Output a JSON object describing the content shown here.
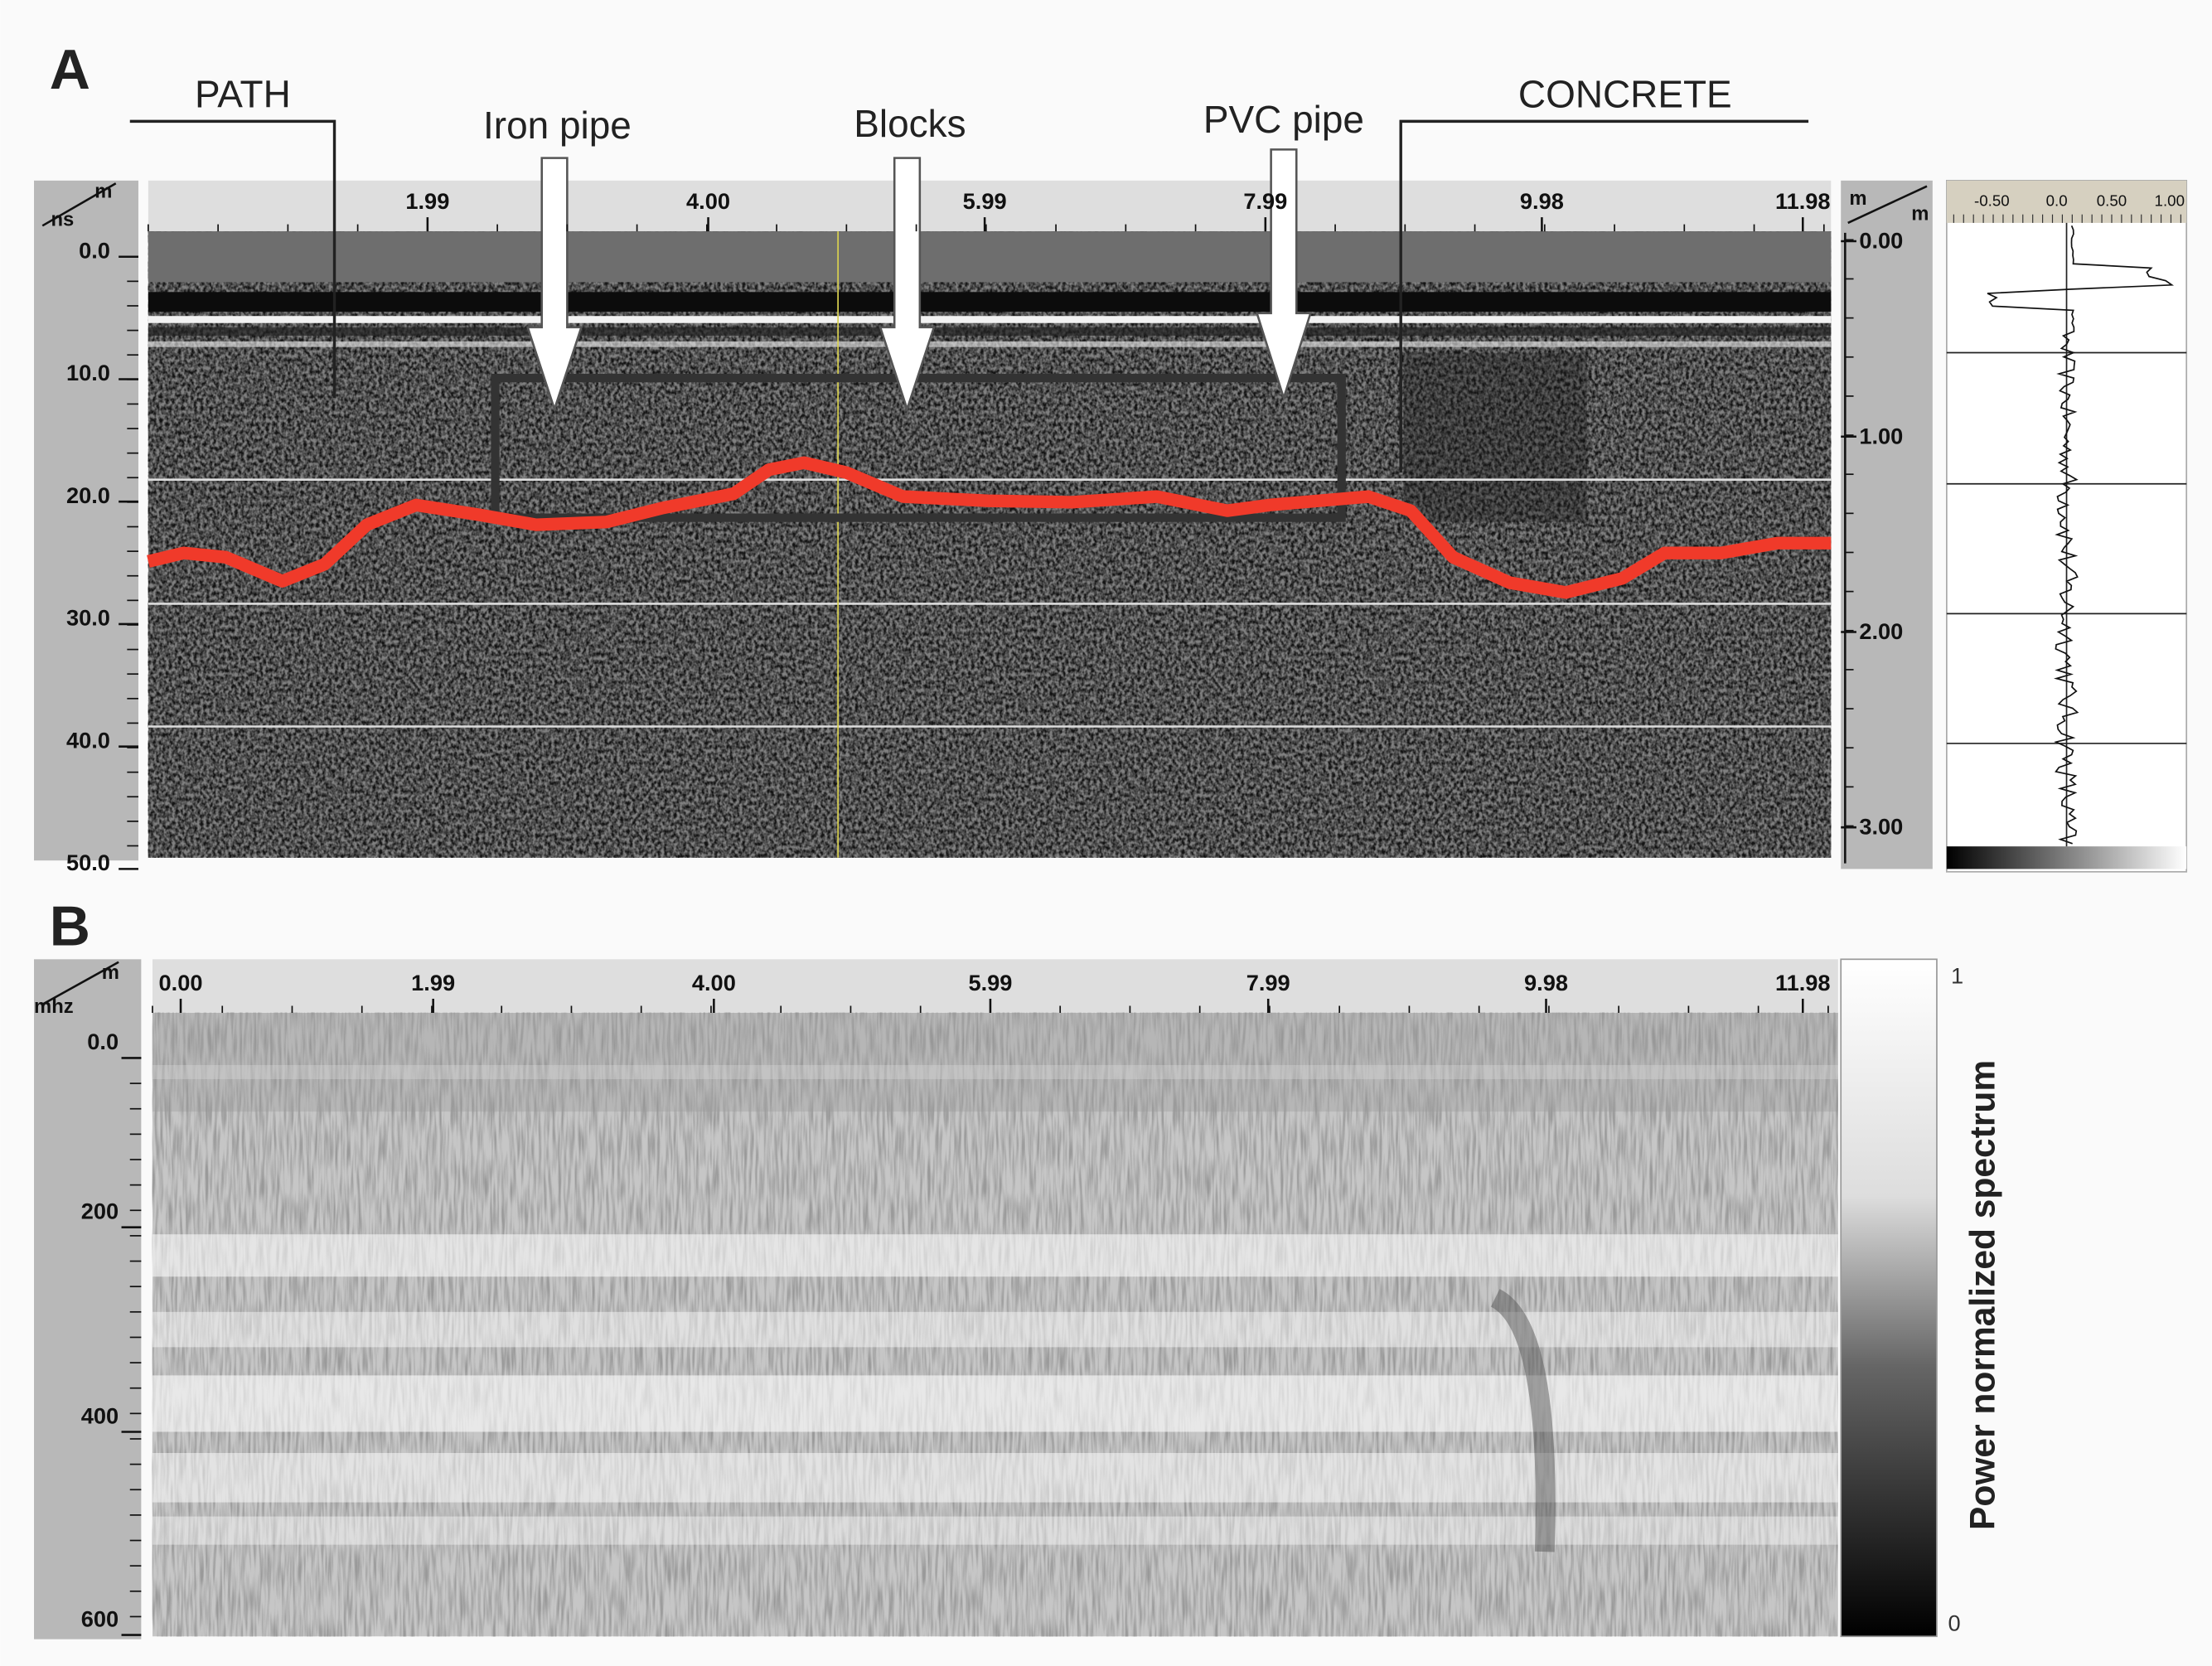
{
  "panel_a": {
    "label": "A",
    "annotations": [
      "PATH",
      "Iron pipe",
      "Blocks",
      "PVC pipe",
      "CONCRETE"
    ],
    "x_axis": {
      "unit": "m",
      "ticks": [
        "1.99",
        "4.00",
        "5.99",
        "7.99",
        "9.98",
        "11.98"
      ]
    },
    "y_axis": {
      "unit": "ns",
      "ticks": [
        "0.0",
        "10.0",
        "20.0",
        "30.0",
        "40.0",
        "50.0"
      ]
    },
    "depth_axis": {
      "unit_top": "m",
      "unit": "m",
      "ticks": [
        "0.00",
        "1.00",
        "2.00",
        "3.00"
      ]
    },
    "trace_axis": {
      "ticks": [
        "-0.50",
        "0.0",
        "0.50",
        "1.00"
      ]
    }
  },
  "panel_b": {
    "label": "B",
    "x_axis": {
      "unit": "m",
      "ticks": [
        "0.00",
        "1.99",
        "4.00",
        "5.99",
        "7.99",
        "9.98",
        "11.98"
      ]
    },
    "y_axis": {
      "unit": "mhz",
      "ticks": [
        "0.0",
        "200",
        "400",
        "600"
      ]
    },
    "colorbar": {
      "title": "Power normalized spectrum",
      "max": "1",
      "min": "0"
    }
  }
}
